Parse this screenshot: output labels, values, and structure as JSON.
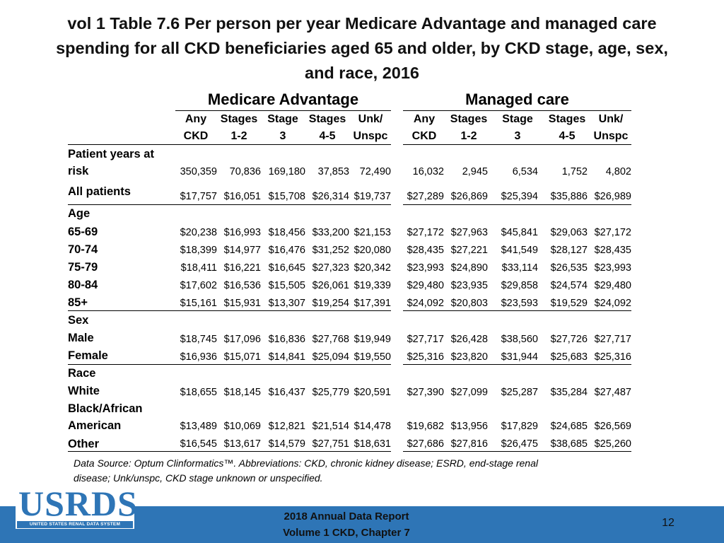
{
  "title": {
    "line1": "vol 1 Table 7.6 Per person per year Medicare Advantage and managed care",
    "line2": "spending for all CKD beneficiaries aged 65 and older, by CKD stage, age, sex,",
    "line3": "and race, 2016"
  },
  "groups": {
    "medicare_advantage": "Medicare Advantage",
    "managed_care": "Managed care"
  },
  "column_headers": [
    "Any\nCKD",
    "Stages\n1-2",
    "Stage\n3",
    "Stages\n4-5",
    "Unk/\nUnspc",
    "Any\nCKD",
    "Stages\n1-2",
    "Stage\n3",
    "Stages\n4-5",
    "Unk/\nUnspc"
  ],
  "rows": [
    {
      "label": "Patient years at\nrisk",
      "values": [
        "350,359",
        "70,836",
        "169,180",
        "37,853",
        "72,490",
        "16,032",
        "2,945",
        "6,534",
        "1,752",
        "4,802"
      ]
    },
    {
      "label": "All patients",
      "values": [
        "$17,757",
        "$16,051",
        "$15,708",
        "$26,314",
        "$19,737",
        "$27,289",
        "$26,869",
        "$25,394",
        "$35,886",
        "$26,989"
      ]
    },
    {
      "label": "Age",
      "values": []
    },
    {
      "label": "65-69",
      "values": [
        "$20,238",
        "$16,993",
        "$18,456",
        "$33,200",
        "$21,153",
        "$27,172",
        "$27,963",
        "$45,841",
        "$29,063",
        "$27,172"
      ]
    },
    {
      "label": "70-74",
      "values": [
        "$18,399",
        "$14,977",
        "$16,476",
        "$31,252",
        "$20,080",
        "$28,435",
        "$27,221",
        "$41,549",
        "$28,127",
        "$28,435"
      ]
    },
    {
      "label": "75-79",
      "values": [
        "$18,411",
        "$16,221",
        "$16,645",
        "$27,323",
        "$20,342",
        "$23,993",
        "$24,890",
        "$33,114",
        "$26,535",
        "$23,993"
      ]
    },
    {
      "label": "80-84",
      "values": [
        "$17,602",
        "$16,536",
        "$15,505",
        "$26,061",
        "$19,339",
        "$29,480",
        "$23,935",
        "$29,858",
        "$24,574",
        "$29,480"
      ]
    },
    {
      "label": "85+",
      "values": [
        "$15,161",
        "$15,931",
        "$13,307",
        "$19,254",
        "$17,391",
        "$24,092",
        "$20,803",
        "$23,593",
        "$19,529",
        "$24,092"
      ]
    },
    {
      "label": "Sex",
      "values": []
    },
    {
      "label": "Male",
      "values": [
        "$18,745",
        "$17,096",
        "$16,836",
        "$27,768",
        "$19,949",
        "$27,717",
        "$26,428",
        "$38,560",
        "$27,726",
        "$27,717"
      ]
    },
    {
      "label": "Female",
      "values": [
        "$16,936",
        "$15,071",
        "$14,841",
        "$25,094",
        "$19,550",
        "$25,316",
        "$23,820",
        "$31,944",
        "$25,683",
        "$25,316"
      ]
    },
    {
      "label": "Race",
      "values": []
    },
    {
      "label": "White",
      "values": [
        "$18,655",
        "$18,145",
        "$16,437",
        "$25,779",
        "$20,591",
        "$27,390",
        "$27,099",
        "$25,287",
        "$35,284",
        "$27,487"
      ]
    },
    {
      "label": "Black/African\nAmerican",
      "values": [
        "$13,489",
        "$10,069",
        "$12,821",
        "$21,514",
        "$14,478",
        "$19,682",
        "$13,956",
        "$17,829",
        "$24,685",
        "$26,569"
      ]
    },
    {
      "label": "Other",
      "values": [
        "$16,545",
        "$13,617",
        "$14,579",
        "$27,751",
        "$18,631",
        "$27,686",
        "$27,816",
        "$26,475",
        "$38,685",
        "$25,260"
      ]
    }
  ],
  "source": {
    "line1": "Data Source: Optum Clinformatics™. Abbreviations: CKD, chronic kidney disease; ESRD, end-stage renal",
    "line2": "disease; Unk/unspc, CKD stage unknown or unspecified."
  },
  "footer": {
    "line1": "2018 Annual Data Report",
    "line2": "Volume 1 CKD, Chapter 7",
    "page_number": "12"
  },
  "logo": {
    "text": "USRDS",
    "subtitle": "UNITED STATES RENAL DATA SYSTEM"
  },
  "colors": {
    "brand_blue": "#2e75b6"
  }
}
